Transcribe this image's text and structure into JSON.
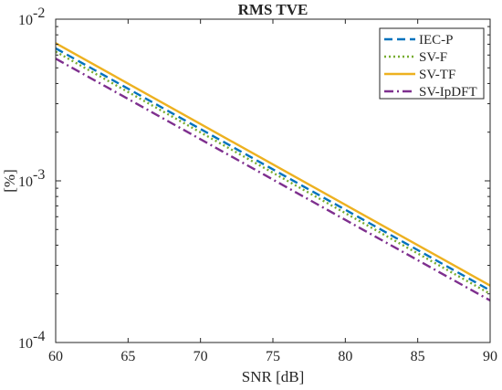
{
  "chart_data": {
    "type": "line",
    "title": "RMS TVE",
    "xlabel": "SNR [dB]",
    "ylabel": "[%]",
    "xlim": [
      60,
      90
    ],
    "ylim": [
      0.0001,
      0.01
    ],
    "yscale": "log",
    "grid": false,
    "legend_position": "top-right",
    "x_ticks": [
      60,
      65,
      70,
      75,
      80,
      85,
      90
    ],
    "x_tick_labels": [
      "60",
      "65",
      "70",
      "75",
      "80",
      "85",
      "90"
    ],
    "y_ticks": [
      0.0001,
      0.001,
      0.01
    ],
    "y_tick_labels": [
      {
        "base": "10",
        "exp": "-4"
      },
      {
        "base": "10",
        "exp": "-3"
      },
      {
        "base": "10",
        "exp": "-2"
      }
    ],
    "x": [
      60,
      90
    ],
    "series": [
      {
        "name": "IEC-P",
        "values": [
          0.0066,
          0.00021
        ],
        "color": "#0072BD",
        "dash": "dashed"
      },
      {
        "name": "SV-F",
        "values": [
          0.0063,
          0.0002
        ],
        "color": "#77AC30",
        "dash": "dotted"
      },
      {
        "name": "SV-TF",
        "values": [
          0.0071,
          0.000225
        ],
        "color": "#EDB120",
        "dash": "solid"
      },
      {
        "name": "SV-IpDFT",
        "values": [
          0.0057,
          0.000182
        ],
        "color": "#7E2F8E",
        "dash": "dashdot"
      }
    ]
  }
}
